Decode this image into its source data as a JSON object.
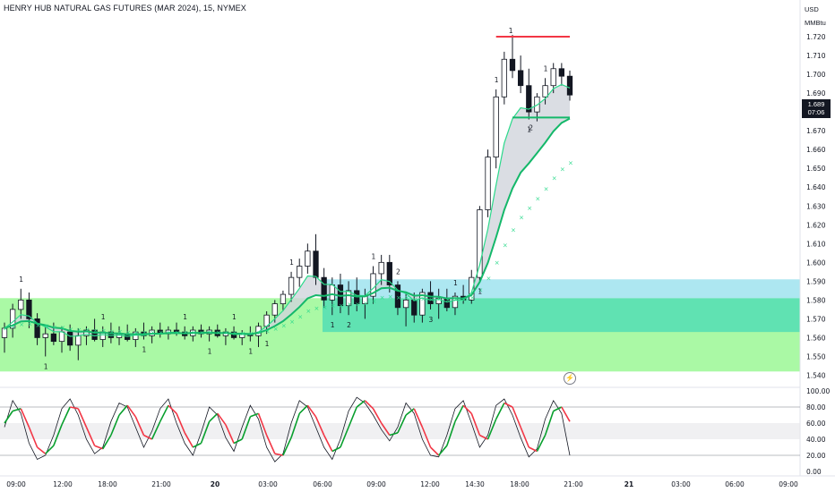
{
  "header": {
    "title": "HENRY HUB NATURAL GAS FUTURES (MAR 2024), 15, NYMEX"
  },
  "axis_units": {
    "currency": "USD",
    "unit": "MMBtu"
  },
  "last_price": {
    "value": "1.689",
    "countdown": "07:06"
  },
  "colors": {
    "up": "#089981",
    "down": "#f23645",
    "zone_green": "#a5f9a0",
    "zone_teal": "#5ce0b2",
    "zone_cyan": "#a4e4f0",
    "ema_fast": "#2bd98b",
    "ema_slow": "#14b86a",
    "cloud": "#d1d4dc",
    "stoch_k": "#131722",
    "stoch_d_up": "#089f2d",
    "stoch_d_down": "#f23645",
    "level_line": "#f23645"
  },
  "chart_data": [
    {
      "type": "candlestick",
      "title": "HENRY HUB NATURAL GAS FUTURES (MAR 2024), 15, NYMEX",
      "ylim": [
        1.535,
        1.73
      ],
      "yticks": [
        "1.720",
        "1.710",
        "1.700",
        "1.690",
        "1.680",
        "1.670",
        "1.660",
        "1.650",
        "1.640",
        "1.630",
        "1.620",
        "1.610",
        "1.600",
        "1.590",
        "1.580",
        "1.570",
        "1.560",
        "1.550",
        "1.540"
      ],
      "xticks": [
        "09:00",
        "12:00",
        "18:00",
        "21:00",
        "20",
        "03:00",
        "06:00",
        "09:00",
        "12:00",
        "14:30",
        "18:00",
        "21:00",
        "21",
        "03:00",
        "06:00",
        "09:00"
      ],
      "ohlc": [
        [
          1.56,
          1.568,
          1.552,
          1.565
        ],
        [
          1.565,
          1.578,
          1.56,
          1.575
        ],
        [
          1.575,
          1.586,
          1.57,
          1.58
        ],
        [
          1.58,
          1.584,
          1.565,
          1.57
        ],
        [
          1.57,
          1.573,
          1.556,
          1.56
        ],
        [
          1.56,
          1.566,
          1.55,
          1.562
        ],
        [
          1.562,
          1.568,
          1.556,
          1.558
        ],
        [
          1.558,
          1.566,
          1.552,
          1.563
        ],
        [
          1.563,
          1.567,
          1.553,
          1.556
        ],
        [
          1.556,
          1.565,
          1.548,
          1.561
        ],
        [
          1.561,
          1.566,
          1.556,
          1.564
        ],
        [
          1.564,
          1.57,
          1.558,
          1.559
        ],
        [
          1.559,
          1.566,
          1.555,
          1.563
        ],
        [
          1.563,
          1.568,
          1.557,
          1.56
        ],
        [
          1.56,
          1.566,
          1.556,
          1.562
        ],
        [
          1.562,
          1.567,
          1.558,
          1.559
        ],
        [
          1.559,
          1.565,
          1.555,
          1.563
        ],
        [
          1.563,
          1.568,
          1.559,
          1.561
        ],
        [
          1.561,
          1.566,
          1.557,
          1.564
        ],
        [
          1.564,
          1.568,
          1.56,
          1.562
        ],
        [
          1.562,
          1.566,
          1.559,
          1.564
        ],
        [
          1.564,
          1.568,
          1.561,
          1.563
        ],
        [
          1.563,
          1.566,
          1.559,
          1.561
        ],
        [
          1.561,
          1.566,
          1.558,
          1.564
        ],
        [
          1.564,
          1.567,
          1.56,
          1.562
        ],
        [
          1.562,
          1.566,
          1.558,
          1.564
        ],
        [
          1.564,
          1.567,
          1.56,
          1.561
        ],
        [
          1.561,
          1.565,
          1.556,
          1.563
        ],
        [
          1.563,
          1.566,
          1.559,
          1.56
        ],
        [
          1.56,
          1.564,
          1.556,
          1.562
        ],
        [
          1.562,
          1.566,
          1.558,
          1.561
        ],
        [
          1.561,
          1.568,
          1.555,
          1.566
        ],
        [
          1.566,
          1.574,
          1.562,
          1.572
        ],
        [
          1.572,
          1.58,
          1.568,
          1.578
        ],
        [
          1.578,
          1.585,
          1.574,
          1.583
        ],
        [
          1.583,
          1.595,
          1.579,
          1.592
        ],
        [
          1.592,
          1.602,
          1.587,
          1.598
        ],
        [
          1.598,
          1.61,
          1.594,
          1.606
        ],
        [
          1.606,
          1.615,
          1.588,
          1.592
        ],
        [
          1.592,
          1.597,
          1.576,
          1.58
        ],
        [
          1.58,
          1.592,
          1.572,
          1.588
        ],
        [
          1.588,
          1.594,
          1.573,
          1.577
        ],
        [
          1.577,
          1.59,
          1.572,
          1.585
        ],
        [
          1.585,
          1.592,
          1.574,
          1.578
        ],
        [
          1.578,
          1.586,
          1.57,
          1.582
        ],
        [
          1.582,
          1.598,
          1.578,
          1.594
        ],
        [
          1.594,
          1.604,
          1.588,
          1.6
        ],
        [
          1.6,
          1.604,
          1.584,
          1.588
        ],
        [
          1.588,
          1.59,
          1.572,
          1.576
        ],
        [
          1.576,
          1.584,
          1.566,
          1.58
        ],
        [
          1.58,
          1.584,
          1.568,
          1.572
        ],
        [
          1.572,
          1.586,
          1.568,
          1.584
        ],
        [
          1.584,
          1.59,
          1.575,
          1.578
        ],
        [
          1.578,
          1.586,
          1.57,
          1.581
        ],
        [
          1.581,
          1.586,
          1.574,
          1.576
        ],
        [
          1.576,
          1.584,
          1.572,
          1.582
        ],
        [
          1.582,
          1.588,
          1.578,
          1.58
        ],
        [
          1.58,
          1.596,
          1.578,
          1.592
        ],
        [
          1.592,
          1.63,
          1.59,
          1.628
        ],
        [
          1.628,
          1.66,
          1.624,
          1.656
        ],
        [
          1.656,
          1.692,
          1.65,
          1.688
        ],
        [
          1.688,
          1.712,
          1.684,
          1.708
        ],
        [
          1.708,
          1.721,
          1.698,
          1.702
        ],
        [
          1.702,
          1.71,
          1.69,
          1.694
        ],
        [
          1.694,
          1.703,
          1.676,
          1.68
        ],
        [
          1.68,
          1.69,
          1.675,
          1.688
        ],
        [
          1.688,
          1.698,
          1.684,
          1.694
        ],
        [
          1.694,
          1.706,
          1.69,
          1.703
        ],
        [
          1.703,
          1.706,
          1.694,
          1.699
        ],
        [
          1.699,
          1.702,
          1.686,
          1.689
        ]
      ],
      "horizontal_levels": [
        1.72,
        1.677
      ],
      "level_labels": [
        "1",
        "2"
      ],
      "zones": [
        {
          "name": "green-zone",
          "from": 1.542,
          "to": 1.581,
          "color": "#a5f9a0"
        },
        {
          "name": "teal-zone",
          "from": 1.563,
          "to": 1.581,
          "color": "#5ce0b2"
        },
        {
          "name": "cyan-zone",
          "from": 1.581,
          "to": 1.591,
          "color": "#a4e4f0"
        }
      ],
      "annotations": [
        "1",
        "1",
        "1",
        "1",
        "1",
        "1",
        "1",
        "1",
        "1",
        "2",
        "2",
        "3",
        "1",
        "1",
        "1",
        "1",
        "1",
        "1",
        "1",
        "1"
      ]
    },
    {
      "type": "line",
      "name": "stochastic",
      "ylim": [
        0,
        100
      ],
      "yticks": [
        "100.00",
        "80.00",
        "60.00",
        "40.00",
        "20.00",
        "0.00"
      ],
      "band": [
        40,
        60
      ],
      "series": [
        {
          "values": [
            55,
            88,
            72,
            35,
            15,
            20,
            45,
            78,
            90,
            70,
            40,
            22,
            30,
            62,
            85,
            80,
            55,
            30,
            50,
            78,
            90,
            60,
            35,
            20,
            48,
            80,
            70,
            42,
            25,
            55,
            82,
            65,
            30,
            12,
            22,
            60,
            88,
            80,
            55,
            30,
            15,
            40,
            75,
            92,
            85,
            70,
            52,
            38,
            55,
            85,
            72,
            40,
            20,
            18,
            45,
            78,
            88,
            60,
            30,
            45,
            82,
            90,
            70,
            42,
            18,
            28,
            65,
            88,
            72,
            20
          ]
        },
        {
          "values": [
            60,
            75,
            78,
            55,
            30,
            22,
            32,
            58,
            80,
            78,
            55,
            32,
            28,
            45,
            70,
            82,
            68,
            45,
            40,
            62,
            82,
            72,
            48,
            30,
            35,
            62,
            72,
            58,
            35,
            40,
            68,
            72,
            45,
            22,
            20,
            42,
            72,
            82,
            68,
            45,
            25,
            30,
            55,
            80,
            88,
            78,
            60,
            45,
            48,
            70,
            78,
            55,
            30,
            20,
            32,
            62,
            82,
            72,
            45,
            40,
            65,
            85,
            80,
            55,
            30,
            25,
            45,
            75,
            80,
            62
          ]
        }
      ]
    }
  ]
}
